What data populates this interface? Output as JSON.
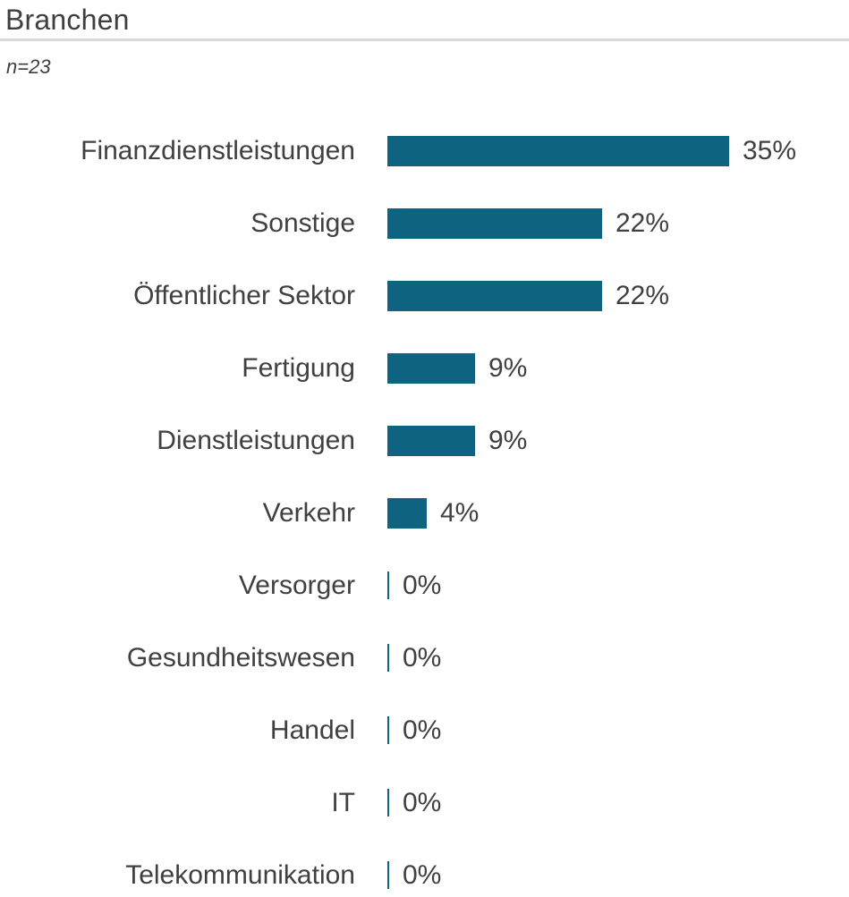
{
  "header": {
    "title": "Branchen",
    "subtitle": "n=23"
  },
  "colors": {
    "bar": "#0e6480",
    "text": "#404040",
    "divider": "#d9d9d9"
  },
  "chart_data": {
    "type": "bar",
    "orientation": "horizontal",
    "title": "Branchen",
    "subtitle": "n=23",
    "sample_size": 23,
    "categories": [
      "Finanzdienstleistungen",
      "Sonstige",
      "Öffentlicher Sektor",
      "Fertigung",
      "Dienstleistungen",
      "Verkehr",
      "Versorger",
      "Gesundheitswesen",
      "Handel",
      "IT",
      "Telekommunikation"
    ],
    "values": [
      35,
      22,
      22,
      9,
      9,
      4,
      0,
      0,
      0,
      0,
      0
    ],
    "value_labels": [
      "35%",
      "22%",
      "22%",
      "9%",
      "9%",
      "4%",
      "0%",
      "0%",
      "0%",
      "0%",
      "0%"
    ],
    "unit": "%",
    "xlim": [
      0,
      35
    ],
    "grid": false,
    "legend": false,
    "bar_color": "#0e6480",
    "zero_marker": "thin vertical tick at baseline"
  }
}
